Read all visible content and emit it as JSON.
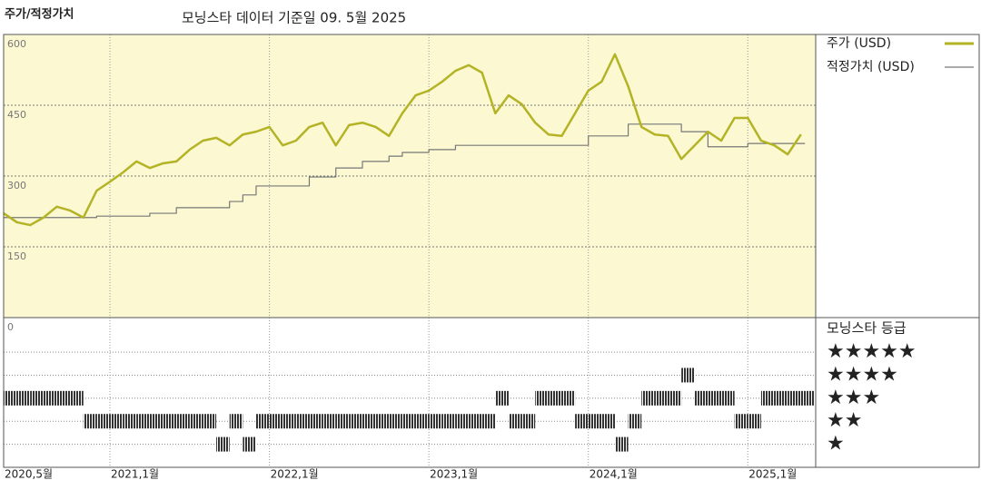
{
  "header": {
    "title": "주가/적정가치",
    "subtitle": "모닝스타 데이터 기준일 09. 5월 2025"
  },
  "chart_data": {
    "type": "line",
    "x": [
      "2020-05",
      "2020-06",
      "2020-07",
      "2020-08",
      "2020-09",
      "2020-10",
      "2020-11",
      "2020-12",
      "2021-01",
      "2021-02",
      "2021-03",
      "2021-04",
      "2021-05",
      "2021-06",
      "2021-07",
      "2021-08",
      "2021-09",
      "2021-10",
      "2021-11",
      "2021-12",
      "2022-01",
      "2022-02",
      "2022-03",
      "2022-04",
      "2022-05",
      "2022-06",
      "2022-07",
      "2022-08",
      "2022-09",
      "2022-10",
      "2022-11",
      "2022-12",
      "2023-01",
      "2023-02",
      "2023-03",
      "2023-04",
      "2023-05",
      "2023-06",
      "2023-07",
      "2023-08",
      "2023-09",
      "2023-10",
      "2023-11",
      "2023-12",
      "2024-01",
      "2024-02",
      "2024-03",
      "2024-04",
      "2024-05",
      "2024-06",
      "2024-07",
      "2024-08",
      "2024-09",
      "2024-10",
      "2024-11",
      "2024-12",
      "2025-01",
      "2025-02",
      "2025-03",
      "2025-04",
      "2025-05"
    ],
    "series": [
      {
        "name": "주가 (USD)",
        "color": "#b3b325",
        "values": [
          221,
          202,
          196,
          212,
          235,
          227,
          212,
          269,
          288,
          308,
          331,
          317,
          327,
          331,
          356,
          375,
          381,
          365,
          388,
          394,
          404,
          365,
          375,
          404,
          413,
          365,
          408,
          413,
          404,
          385,
          433,
          471,
          481,
          500,
          523,
          535,
          519,
          433,
          471,
          452,
          413,
          388,
          385,
          433,
          481,
          500,
          558,
          490,
          404,
          388,
          385,
          336,
          365,
          394,
          375,
          423,
          423,
          375,
          365,
          346,
          388
        ]
      },
      {
        "name": "적정가치 (USD)",
        "color": "#777777",
        "step": true,
        "values": [
          212,
          212,
          212,
          212,
          212,
          212,
          212,
          215,
          215,
          215,
          215,
          221,
          221,
          233,
          233,
          233,
          233,
          246,
          260,
          279,
          279,
          279,
          279,
          298,
          298,
          317,
          317,
          331,
          331,
          342,
          350,
          350,
          356,
          356,
          365,
          365,
          365,
          365,
          365,
          365,
          365,
          365,
          365,
          365,
          385,
          385,
          385,
          410,
          410,
          410,
          410,
          394,
          394,
          362,
          362,
          362,
          369,
          369,
          369,
          369,
          369
        ]
      }
    ],
    "ylim": [
      0,
      600
    ],
    "yticks": [
      0,
      150,
      300,
      450,
      600
    ],
    "xticks": [
      {
        "value": "2020-05",
        "label": "2020,5월"
      },
      {
        "value": "2021-01",
        "label": "2021,1월"
      },
      {
        "value": "2022-01",
        "label": "2022,1월"
      },
      {
        "value": "2023-01",
        "label": "2023,1월"
      },
      {
        "value": "2024-01",
        "label": "2024,1월"
      },
      {
        "value": "2025-01",
        "label": "2025,1월"
      }
    ],
    "grid": true,
    "background": "#fbf8d2",
    "rating": {
      "title": "모닝스타 등급",
      "color": "#333333",
      "lim": [
        0,
        6.5
      ],
      "ticks": [
        {
          "value": 5,
          "label": "★★★★★"
        },
        {
          "value": 4,
          "label": "★★★★"
        },
        {
          "value": 3,
          "label": "★★★"
        },
        {
          "value": 2,
          "label": "★★"
        },
        {
          "value": 1,
          "label": "★"
        }
      ],
      "values": [
        3,
        3,
        3,
        3,
        3,
        3,
        2,
        2,
        2,
        2,
        2,
        2,
        2,
        2,
        2,
        2,
        1,
        2,
        1,
        2,
        2,
        2,
        2,
        2,
        2,
        2,
        2,
        2,
        2,
        2,
        2,
        2,
        2,
        2,
        2,
        2,
        2,
        3,
        2,
        2,
        3,
        3,
        3,
        2,
        2,
        2,
        1,
        2,
        3,
        3,
        3,
        4,
        3,
        3,
        3,
        2,
        2,
        3,
        3,
        3,
        3
      ]
    }
  }
}
